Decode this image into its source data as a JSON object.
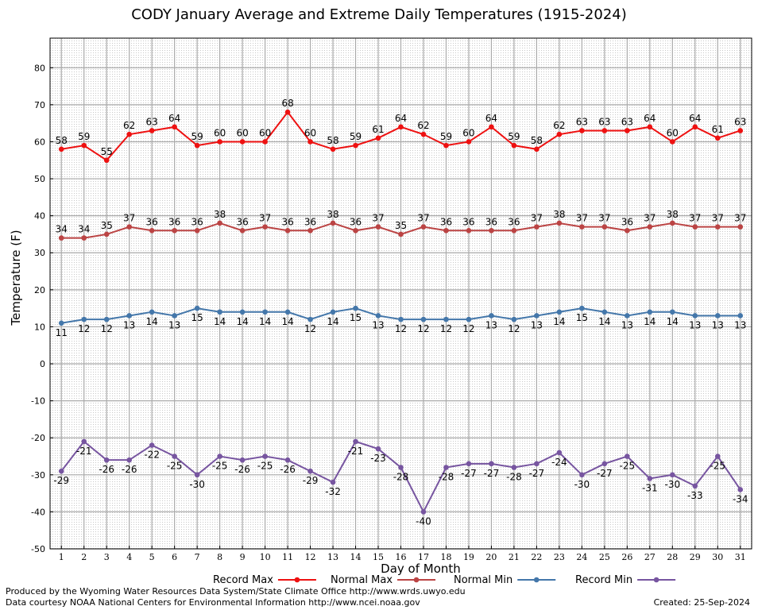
{
  "chart_data": {
    "type": "line",
    "title": "CODY January Average and Extreme Daily Temperatures (1915-2024)",
    "xlabel": "Day of Month",
    "ylabel": "Temperature (F)",
    "xlim": [
      0.5,
      31.5
    ],
    "ylim": [
      -50,
      88
    ],
    "yticks": [
      -50,
      -40,
      -30,
      -20,
      -10,
      0,
      10,
      20,
      30,
      40,
      50,
      60,
      70,
      80
    ],
    "x": [
      1,
      2,
      3,
      4,
      5,
      6,
      7,
      8,
      9,
      10,
      11,
      12,
      13,
      14,
      15,
      16,
      17,
      18,
      19,
      20,
      21,
      22,
      23,
      24,
      25,
      26,
      27,
      28,
      29,
      30,
      31
    ],
    "grid": true,
    "legend_position": "bottom",
    "series": [
      {
        "name": "Record Max",
        "color": "#ee1111",
        "label_pos": "above",
        "values": [
          58,
          59,
          55,
          62,
          63,
          64,
          59,
          60,
          60,
          60,
          68,
          60,
          58,
          59,
          61,
          64,
          62,
          59,
          60,
          64,
          59,
          58,
          62,
          63,
          63,
          63,
          64,
          60,
          64,
          61,
          63
        ]
      },
      {
        "name": "Normal Max",
        "color": "#bb4444",
        "label_pos": "above",
        "values": [
          34,
          34,
          35,
          37,
          36,
          36,
          36,
          38,
          36,
          37,
          36,
          36,
          38,
          36,
          37,
          35,
          37,
          36,
          36,
          36,
          36,
          37,
          38,
          37,
          37,
          36,
          37,
          38,
          37,
          37,
          37
        ]
      },
      {
        "name": "Normal Min",
        "color": "#4477aa",
        "label_pos": "below",
        "values": [
          11,
          12,
          12,
          13,
          14,
          13,
          15,
          14,
          14,
          14,
          14,
          12,
          14,
          15,
          13,
          12,
          12,
          12,
          12,
          13,
          12,
          13,
          14,
          15,
          14,
          13,
          14,
          14,
          13,
          13,
          13
        ]
      },
      {
        "name": "Record Min",
        "color": "#7755a0",
        "label_pos": "below",
        "values": [
          -29,
          -21,
          -26,
          -26,
          -22,
          -25,
          -30,
          -25,
          -26,
          -25,
          -26,
          -29,
          -32,
          -21,
          -23,
          -28,
          -40,
          -28,
          -27,
          -27,
          -28,
          -27,
          -24,
          -30,
          -27,
          -25,
          -31,
          -30,
          -33,
          -25,
          -34
        ]
      }
    ]
  },
  "footer": {
    "produced_by": "Produced by the Wyoming Water Resources Data System/State Climate Office http://www.wrds.uwyo.edu",
    "courtesy": "Data courtesy NOAA National Centers for Environmental Information http://www.ncei.noaa.gov",
    "created": "Created:  25-Sep-2024"
  }
}
